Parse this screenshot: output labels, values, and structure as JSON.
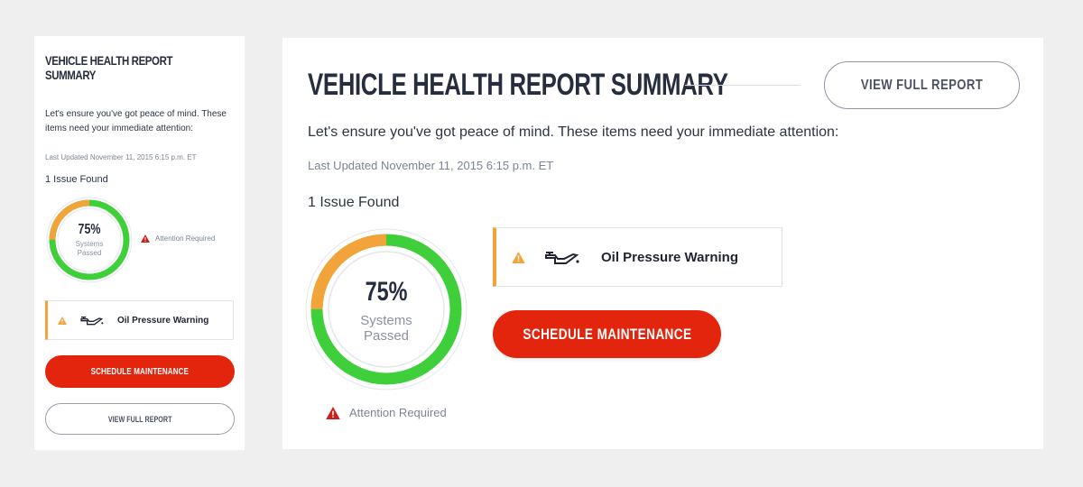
{
  "colors": {
    "background": "#efeff0",
    "card": "#ffffff",
    "title_text": "#262d3f",
    "accent_red": "#e3250e",
    "warning_orange": "#f2a33a",
    "gauge_green": "#3ecf3a",
    "muted_text": "#7b8494"
  },
  "report": {
    "title": "VEHICLE HEALTH REPORT SUMMARY",
    "intro": "Let's ensure you've got peace of mind. These items need your immediate attention:",
    "last_updated": "Last Updated November 11, 2015 6:15 p.m. ET",
    "issues_found": "1 Issue Found",
    "gauge": {
      "percent_label": "75%",
      "sublabel_line1": "Systems",
      "sublabel_line2": "Passed",
      "passed_fraction": 0.75
    },
    "attention": {
      "label": "Attention Required",
      "icon": "warning-triangle-red-icon"
    },
    "warning_item": {
      "label": "Oil Pressure Warning",
      "status_icon": "warning-triangle-orange-icon",
      "type_icon": "oil-can-icon"
    },
    "actions": {
      "schedule_label": "SCHEDULE MAINTENANCE",
      "view_report_label": "VIEW FULL REPORT"
    }
  }
}
